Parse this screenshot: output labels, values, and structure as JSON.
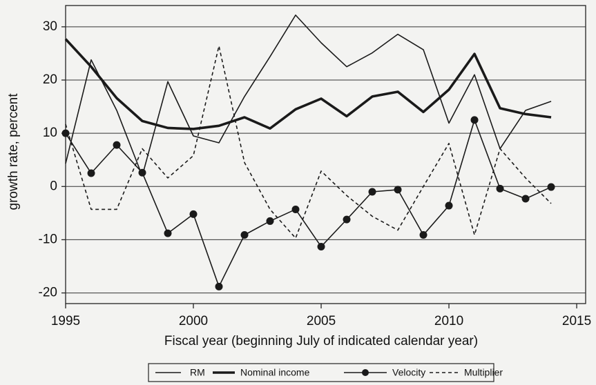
{
  "chart_data": {
    "type": "line",
    "x_label": "Fiscal year (beginning July of indicated calendar year)",
    "y_label": "growth rate, percent",
    "x": [
      1995,
      1996,
      1997,
      1998,
      1999,
      2000,
      2001,
      2002,
      2003,
      2004,
      2005,
      2006,
      2007,
      2008,
      2009,
      2010,
      2011,
      2012,
      2013,
      2014
    ],
    "series": [
      {
        "name": "RM",
        "color": "#1a1a1a",
        "style": "thin",
        "values": [
          4.3,
          23.8,
          14.3,
          2,
          19.7,
          9.5,
          8.2,
          16.9,
          24.4,
          32.2,
          27,
          22.5,
          25.1,
          28.6,
          25.7,
          11.9,
          21,
          7.1,
          14.3,
          16
        ]
      },
      {
        "name": "Nominal income",
        "color": "#1a1a1a",
        "style": "thick",
        "values": [
          27.7,
          22.5,
          16.6,
          12.3,
          11,
          10.8,
          11.4,
          13,
          10.9,
          14.5,
          16.5,
          13.2,
          16.9,
          17.8,
          14,
          18.2,
          24.9,
          14.7,
          13.6,
          13
        ]
      },
      {
        "name": "Velocity",
        "color": "#1a1a1a",
        "style": "thin",
        "marker": "circle",
        "values": [
          10,
          2.5,
          7.8,
          2.6,
          -8.8,
          -5.2,
          -18.8,
          -9.1,
          -6.5,
          -4.3,
          -11.3,
          -6.2,
          -1,
          -0.6,
          -9.1,
          -3.6,
          12.5,
          -0.4,
          -2.3,
          -0.1
        ]
      },
      {
        "name": "Multiplier",
        "color": "#1a1a1a",
        "style": "dashed",
        "values": [
          11.7,
          -4.3,
          -4.3,
          7.1,
          1.6,
          5.8,
          26.4,
          4.5,
          -4.3,
          -9.7,
          2.9,
          -1.7,
          -5.6,
          -8.2,
          0,
          8.1,
          -9.1,
          7.1,
          1.6,
          -3.2
        ]
      }
    ],
    "xlim": [
      1995,
      2015.35
    ],
    "xticks": [
      1995,
      2000,
      2005,
      2010,
      2015
    ],
    "ylim": [
      -22,
      34
    ],
    "yticks": [
      -20,
      -10,
      0,
      10,
      20,
      30
    ],
    "grid": true,
    "legend": "bottom"
  }
}
